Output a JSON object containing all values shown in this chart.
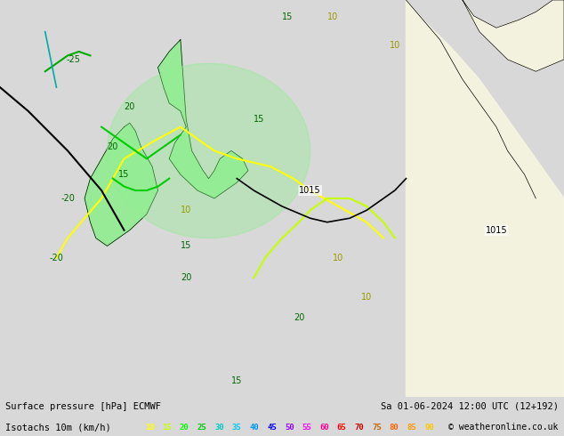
{
  "title_left": "Surface pressure [hPa] ECMWF",
  "title_right": "Sa 01-06-2024 12:00 UTC (12+192)",
  "subtitle_left": "Isotachs 10m (km/h)",
  "copyright": "© weatheronline.co.uk",
  "legend_values": [
    10,
    15,
    20,
    25,
    30,
    35,
    40,
    45,
    50,
    55,
    60,
    65,
    70,
    75,
    80,
    85,
    90
  ],
  "legend_colors": [
    "#ffff00",
    "#c8ff00",
    "#00ff00",
    "#00c800",
    "#00c8c8",
    "#00c8ff",
    "#0096ff",
    "#0000ff",
    "#9600ff",
    "#ff00ff",
    "#ff0096",
    "#ff0000",
    "#c80000",
    "#c86400",
    "#ff6400",
    "#ff9600",
    "#ffc800"
  ],
  "bg_color": "#e8e8e8",
  "map_bg": "#f0f0f0",
  "fig_width": 6.34,
  "fig_height": 4.9,
  "dpi": 100,
  "bottom_bar_color": "#e0e0e0"
}
